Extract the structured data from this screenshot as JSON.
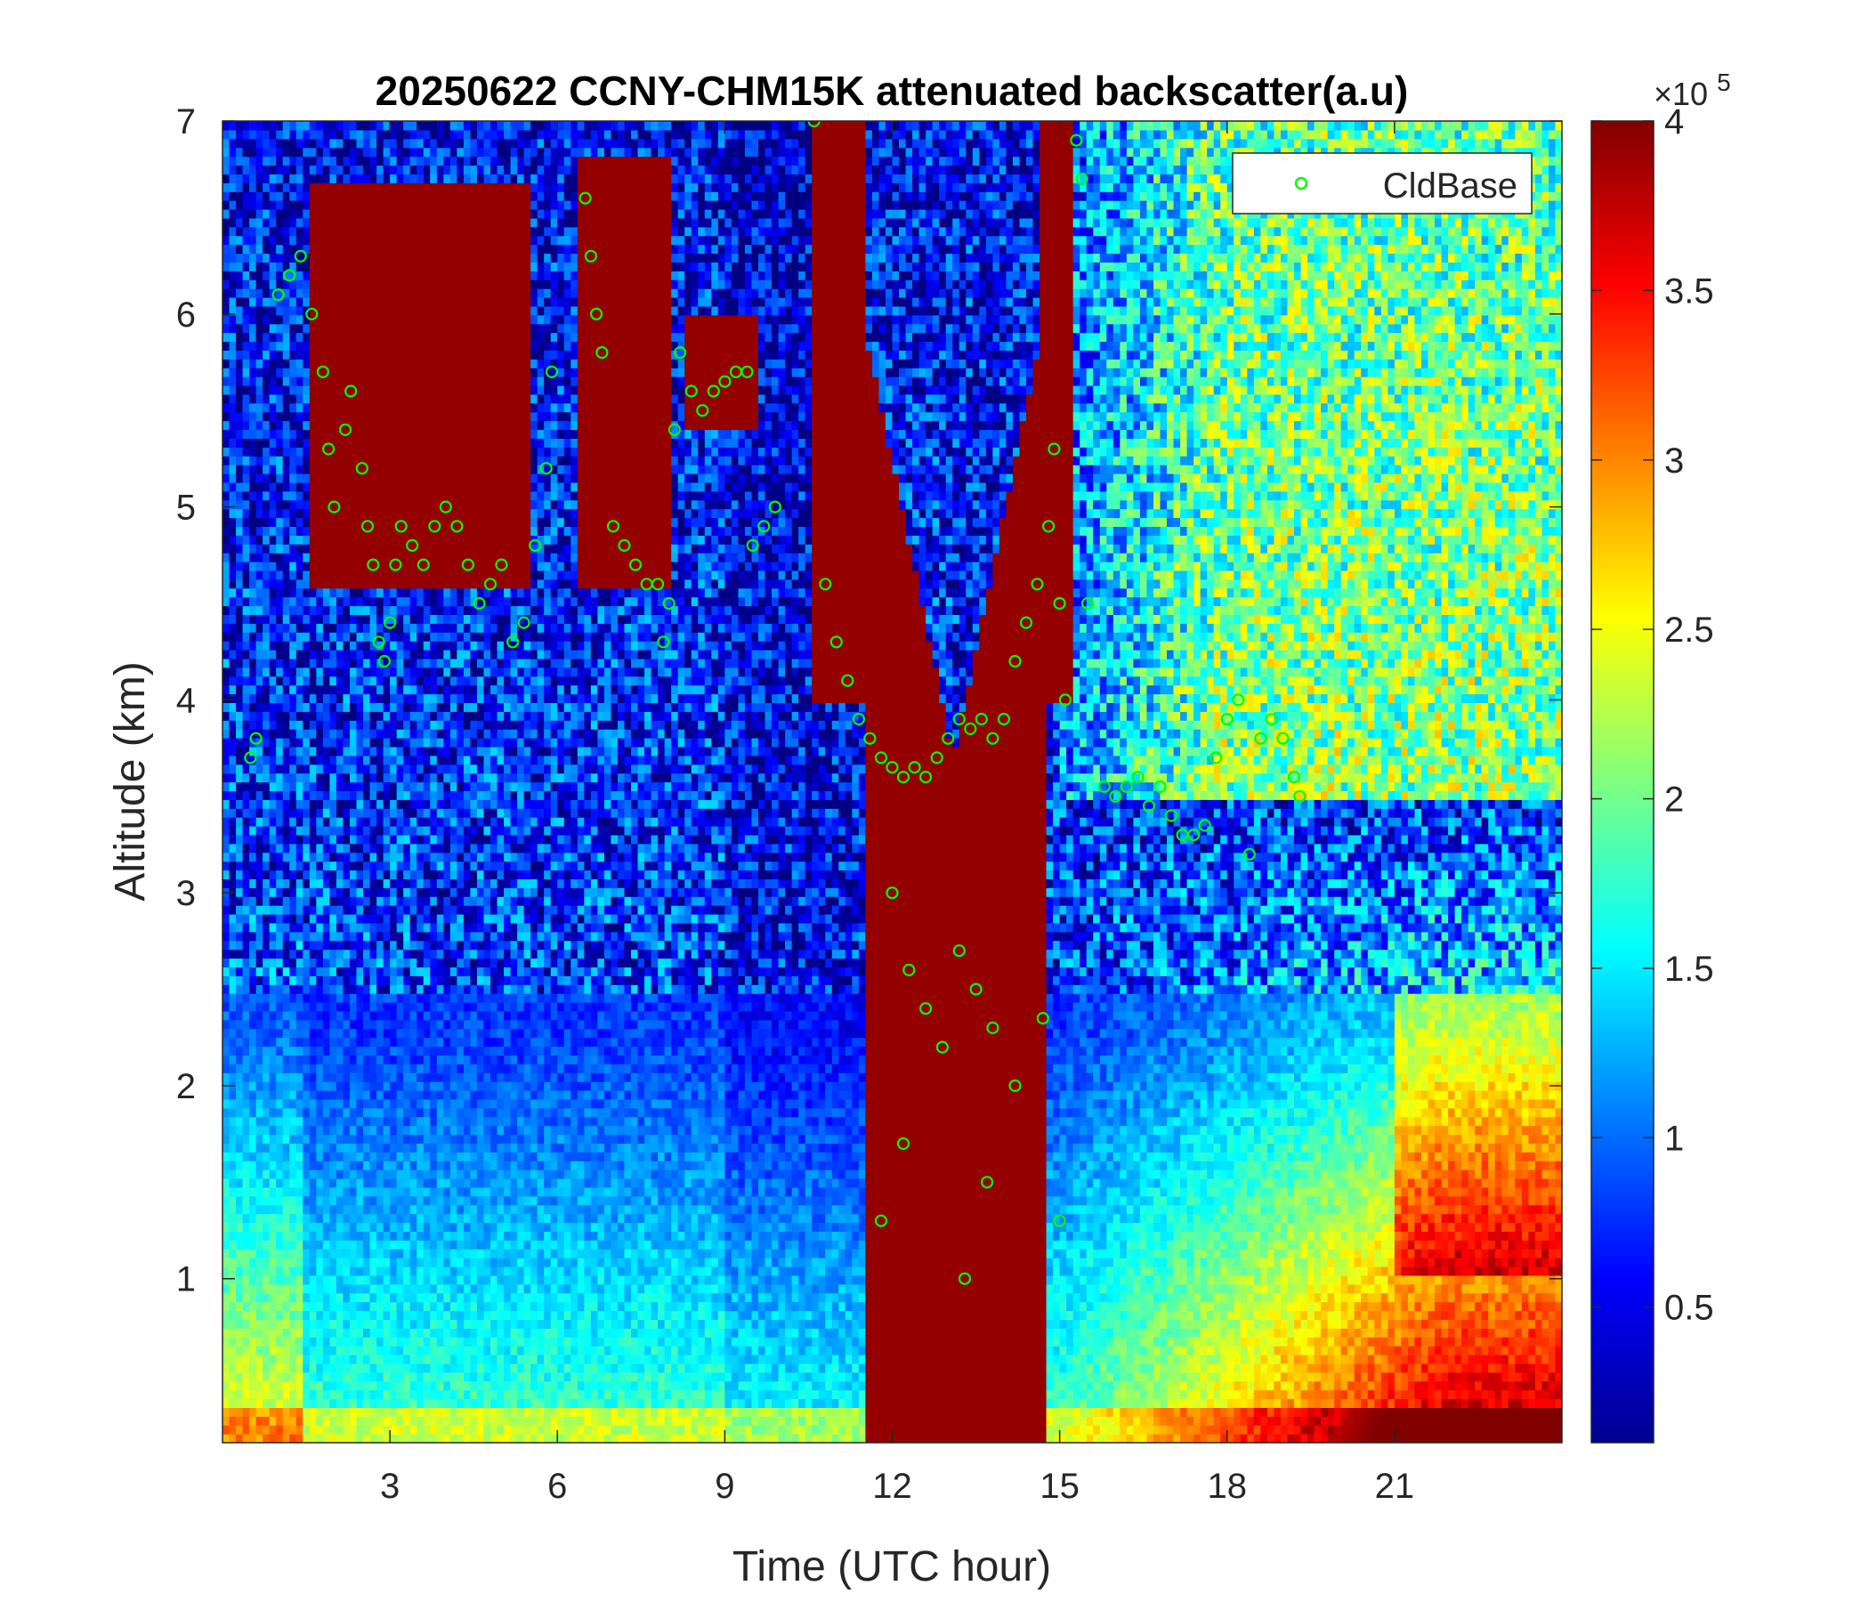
{
  "chart_data": {
    "type": "heatmap",
    "title": "20250622 CCNY-CHM15K attenuated backscatter(a.u)",
    "xlabel": "Time (UTC hour)",
    "ylabel": "Altitude (km)",
    "xlim": [
      0,
      24
    ],
    "ylim": [
      0.15,
      7
    ],
    "x_ticks": [
      3,
      6,
      9,
      12,
      15,
      18,
      21
    ],
    "x_tick_labels": [
      "3",
      "6",
      "9",
      "12",
      "15",
      "18",
      "21"
    ],
    "y_ticks": [
      1,
      2,
      3,
      4,
      5,
      6,
      7
    ],
    "y_tick_labels": [
      "1",
      "2",
      "3",
      "4",
      "5",
      "6",
      "7"
    ],
    "colorbar": {
      "colormap": "jet",
      "clim": [
        0.1,
        4
      ],
      "ticks": [
        0.5,
        1,
        1.5,
        2,
        2.5,
        3,
        3.5,
        4
      ],
      "tick_labels": [
        "0.5",
        "1",
        "1.5",
        "2",
        "2.5",
        "3",
        "3.5",
        "4"
      ],
      "exponent_label": "×10",
      "exponent_power": "5"
    },
    "legend": {
      "position": "top-right",
      "entries": [
        "CldBase"
      ]
    },
    "series": [
      {
        "name": "CldBase",
        "marker": "circle-open",
        "color": "#00ff00",
        "points": [
          [
            1.0,
            6.1
          ],
          [
            1.2,
            6.2
          ],
          [
            1.4,
            6.3
          ],
          [
            1.6,
            6.0
          ],
          [
            1.8,
            5.7
          ],
          [
            1.9,
            5.3
          ],
          [
            2.0,
            5.0
          ],
          [
            2.2,
            5.4
          ],
          [
            2.3,
            5.6
          ],
          [
            2.5,
            5.2
          ],
          [
            2.6,
            4.9
          ],
          [
            2.7,
            4.7
          ],
          [
            2.8,
            4.3
          ],
          [
            2.9,
            4.2
          ],
          [
            3.0,
            4.4
          ],
          [
            3.1,
            4.7
          ],
          [
            3.2,
            4.9
          ],
          [
            3.4,
            4.8
          ],
          [
            3.6,
            4.7
          ],
          [
            3.8,
            4.9
          ],
          [
            4.0,
            5.0
          ],
          [
            4.2,
            4.9
          ],
          [
            4.4,
            4.7
          ],
          [
            4.6,
            4.5
          ],
          [
            4.8,
            4.6
          ],
          [
            5.0,
            4.7
          ],
          [
            5.2,
            4.3
          ],
          [
            5.4,
            4.4
          ],
          [
            5.6,
            4.8
          ],
          [
            5.8,
            5.2
          ],
          [
            5.9,
            5.7
          ],
          [
            6.5,
            6.6
          ],
          [
            6.6,
            6.3
          ],
          [
            6.7,
            6.0
          ],
          [
            6.8,
            5.8
          ],
          [
            7.0,
            4.9
          ],
          [
            7.2,
            4.8
          ],
          [
            7.4,
            4.7
          ],
          [
            7.6,
            4.6
          ],
          [
            7.8,
            4.6
          ],
          [
            7.9,
            4.3
          ],
          [
            8.0,
            4.5
          ],
          [
            8.1,
            5.4
          ],
          [
            8.2,
            5.8
          ],
          [
            8.4,
            5.6
          ],
          [
            8.6,
            5.5
          ],
          [
            8.8,
            5.6
          ],
          [
            9.0,
            5.65
          ],
          [
            9.2,
            5.7
          ],
          [
            9.4,
            5.7
          ],
          [
            9.5,
            4.8
          ],
          [
            9.7,
            4.9
          ],
          [
            9.9,
            5.0
          ],
          [
            10.6,
            7.0
          ],
          [
            10.8,
            4.6
          ],
          [
            11.0,
            4.3
          ],
          [
            11.2,
            4.1
          ],
          [
            11.4,
            3.9
          ],
          [
            11.6,
            3.8
          ],
          [
            11.8,
            3.7
          ],
          [
            12.0,
            3.65
          ],
          [
            12.2,
            3.6
          ],
          [
            12.4,
            3.65
          ],
          [
            12.6,
            3.6
          ],
          [
            12.8,
            3.7
          ],
          [
            13.0,
            3.8
          ],
          [
            13.2,
            3.9
          ],
          [
            13.4,
            3.85
          ],
          [
            13.6,
            3.9
          ],
          [
            13.8,
            3.8
          ],
          [
            14.0,
            3.9
          ],
          [
            14.2,
            4.2
          ],
          [
            14.4,
            4.4
          ],
          [
            14.6,
            4.6
          ],
          [
            14.8,
            4.9
          ],
          [
            14.9,
            5.3
          ],
          [
            15.0,
            4.5
          ],
          [
            15.1,
            4.0
          ],
          [
            15.3,
            6.9
          ],
          [
            15.4,
            6.7
          ],
          [
            15.5,
            4.5
          ],
          [
            15.8,
            3.55
          ],
          [
            16.0,
            3.5
          ],
          [
            16.2,
            3.55
          ],
          [
            16.4,
            3.6
          ],
          [
            16.6,
            3.45
          ],
          [
            16.8,
            3.55
          ],
          [
            17.0,
            3.4
          ],
          [
            17.2,
            3.3
          ],
          [
            17.4,
            3.3
          ],
          [
            17.6,
            3.35
          ],
          [
            17.8,
            3.7
          ],
          [
            18.0,
            3.9
          ],
          [
            18.2,
            4.0
          ],
          [
            18.4,
            3.2
          ],
          [
            18.6,
            3.8
          ],
          [
            18.8,
            3.9
          ],
          [
            19.0,
            3.8
          ],
          [
            19.2,
            3.6
          ],
          [
            19.3,
            3.5
          ],
          [
            12.0,
            3.0
          ],
          [
            12.3,
            2.6
          ],
          [
            12.6,
            2.4
          ],
          [
            12.9,
            2.2
          ],
          [
            13.2,
            2.7
          ],
          [
            13.5,
            2.5
          ],
          [
            13.8,
            2.3
          ],
          [
            11.8,
            1.3
          ],
          [
            12.2,
            1.7
          ],
          [
            13.3,
            1.0
          ],
          [
            13.7,
            1.5
          ],
          [
            14.2,
            2.0
          ],
          [
            14.7,
            2.35
          ],
          [
            15.0,
            1.3
          ],
          [
            0.5,
            3.7
          ],
          [
            0.6,
            3.8
          ]
        ]
      }
    ]
  }
}
